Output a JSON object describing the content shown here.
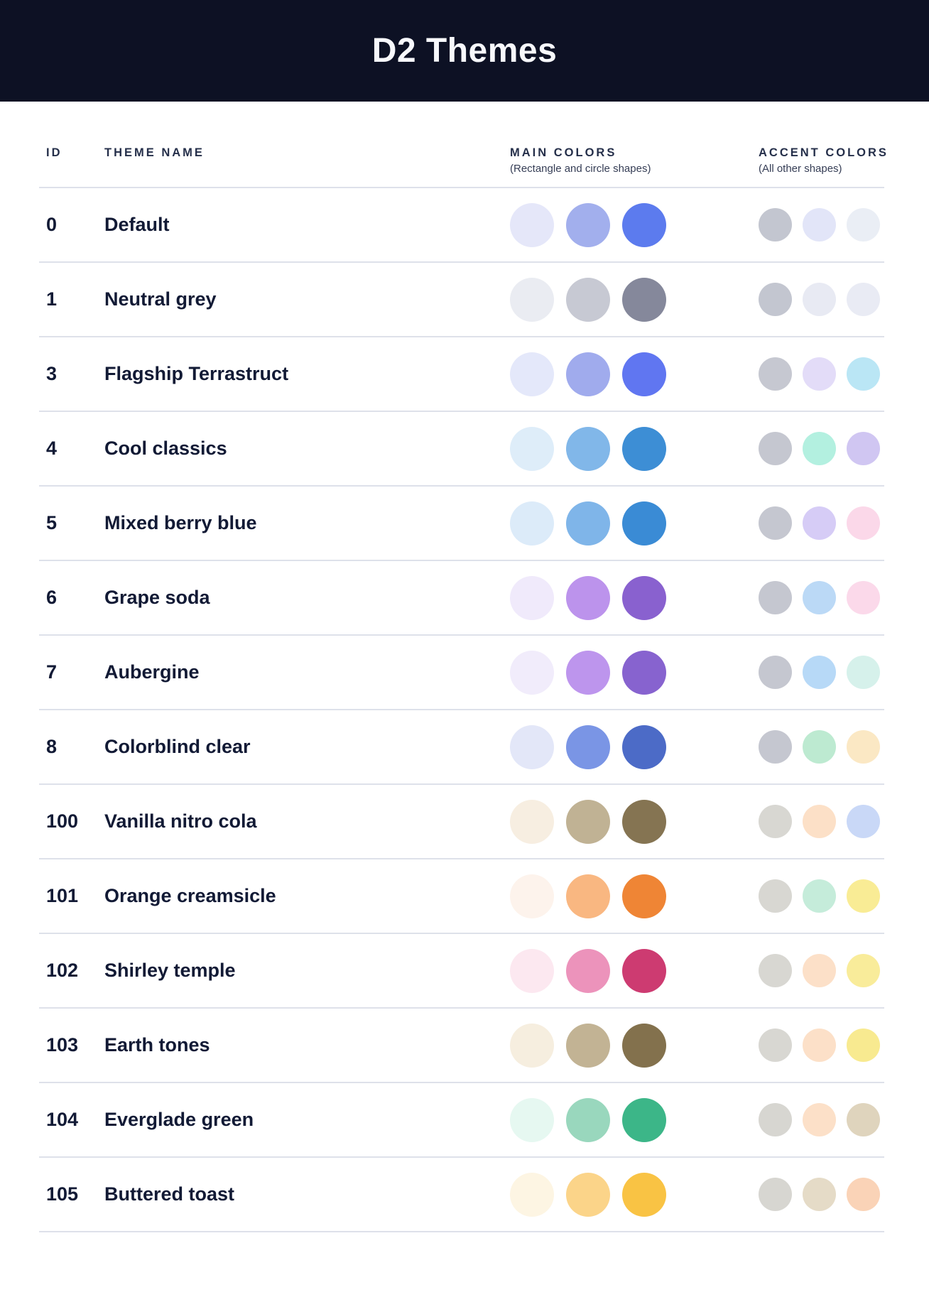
{
  "page": {
    "title": "D2 Themes",
    "header_bg": "#0d1124",
    "header_text_color": "#f7f8fc",
    "divider_color": "#dee1ea"
  },
  "table": {
    "columns": {
      "id_label": "ID",
      "name_label": "THEME NAME",
      "main_label": "MAIN COLORS",
      "main_sub": "(Rectangle and circle shapes)",
      "accent_label": "ACCENT COLORS",
      "accent_sub": "(All other shapes)"
    },
    "rows": [
      {
        "id": "0",
        "name": "Default",
        "main": [
          "#E5E7F9",
          "#A2AFED",
          "#5C7BEE"
        ],
        "accent": [
          "#C3C6D0",
          "#E2E5F8",
          "#EAEEF5"
        ]
      },
      {
        "id": "1",
        "name": "Neutral grey",
        "main": [
          "#EAECF2",
          "#C7C9D3",
          "#85889B"
        ],
        "accent": [
          "#C3C6D0",
          "#E8EAF3",
          "#E9EBF4"
        ]
      },
      {
        "id": "3",
        "name": "Flagship Terrastruct",
        "main": [
          "#E4E8FA",
          "#A0ABED",
          "#6076F1"
        ],
        "accent": [
          "#C6C8D1",
          "#E3DCF8",
          "#BAE6F5"
        ]
      },
      {
        "id": "4",
        "name": "Cool classics",
        "main": [
          "#DEEDF9",
          "#81B7E9",
          "#3D8ED5"
        ],
        "accent": [
          "#C5C7D0",
          "#B3F0E0",
          "#D0C6F2"
        ]
      },
      {
        "id": "5",
        "name": "Mixed berry blue",
        "main": [
          "#DCEBF9",
          "#7FB5E9",
          "#3A8BD5"
        ],
        "accent": [
          "#C5C7D0",
          "#D6CCF6",
          "#FBD8E9"
        ]
      },
      {
        "id": "6",
        "name": "Grape soda",
        "main": [
          "#F0EAFB",
          "#BC93EC",
          "#8961CF"
        ],
        "accent": [
          "#C5C7D0",
          "#BBD9F6",
          "#FBD9EA"
        ]
      },
      {
        "id": "7",
        "name": "Aubergine",
        "main": [
          "#F1ECFB",
          "#BD95ED",
          "#8763CF"
        ],
        "accent": [
          "#C5C7D0",
          "#B7D9F7",
          "#D6F1EB"
        ]
      },
      {
        "id": "8",
        "name": "Colorblind clear",
        "main": [
          "#E3E7F8",
          "#7A95E5",
          "#4C6BC7"
        ],
        "accent": [
          "#C5C7D0",
          "#BDEAD1",
          "#FBE8C4"
        ]
      },
      {
        "id": "100",
        "name": "Vanilla nitro cola",
        "main": [
          "#F7EEE1",
          "#C0B294",
          "#857452"
        ],
        "accent": [
          "#D8D7D2",
          "#FCE0C7",
          "#C9D8F7"
        ]
      },
      {
        "id": "101",
        "name": "Orange creamsicle",
        "main": [
          "#FDF3EC",
          "#F9B781",
          "#EF8535"
        ],
        "accent": [
          "#D8D7D2",
          "#C5ECDA",
          "#F9EC95"
        ]
      },
      {
        "id": "102",
        "name": "Shirley temple",
        "main": [
          "#FCE8F0",
          "#EC93BB",
          "#CD3B71"
        ],
        "accent": [
          "#D8D7D2",
          "#FCE0C8",
          "#F9EC9A"
        ]
      },
      {
        "id": "103",
        "name": "Earth tones",
        "main": [
          "#F6EEDF",
          "#C2B394",
          "#83714D"
        ],
        "accent": [
          "#D8D7D2",
          "#FCE0C8",
          "#F8EA90"
        ]
      },
      {
        "id": "104",
        "name": "Everglade green",
        "main": [
          "#E6F8F1",
          "#99D7BD",
          "#3CB688"
        ],
        "accent": [
          "#D7D6D1",
          "#FCE0C8",
          "#DFD4BD"
        ]
      },
      {
        "id": "105",
        "name": "Buttered toast",
        "main": [
          "#FDF5E3",
          "#FBD489",
          "#F9C344"
        ],
        "accent": [
          "#D7D6D1",
          "#E5DBC7",
          "#FAD3B7"
        ]
      }
    ]
  }
}
